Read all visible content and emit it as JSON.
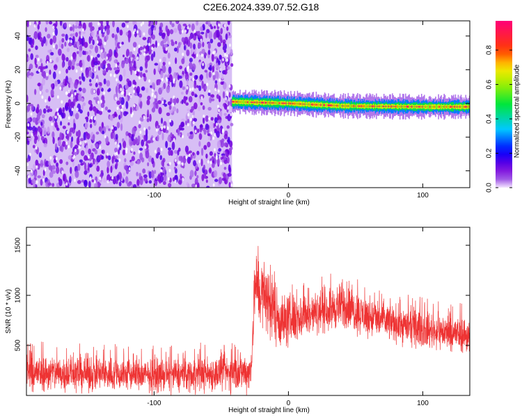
{
  "title": "C2E6.2024.339.07.52.G18",
  "chart_data": [
    {
      "type": "heatmap",
      "xlabel": "Height of straight line (km)",
      "ylabel": "Frequency (Hz)",
      "xlim": [
        -195,
        135
      ],
      "ylim": [
        -50,
        49
      ],
      "xticks": [
        -100,
        0,
        100
      ],
      "yticks": [
        -40,
        -20,
        0,
        20,
        40
      ],
      "colorbar": {
        "label": "Normalized spectral amplitude",
        "range": [
          0,
          0.97
        ],
        "ticks": [
          0,
          0.2,
          0.4,
          0.6,
          0.8
        ]
      },
      "noise_region_x": [
        -195,
        -42
      ],
      "signal_track": [
        {
          "x": -42,
          "f": 1.0
        },
        {
          "x": 0,
          "f": 0.0
        },
        {
          "x": 40,
          "f": -1.5
        },
        {
          "x": 100,
          "f": -2.0
        },
        {
          "x": 135,
          "f": -2.0
        }
      ]
    },
    {
      "type": "line",
      "xlabel": "Height of straight line (km)",
      "ylabel": "SNR (10 * v/v)",
      "xlim": [
        -195,
        135
      ],
      "ylim": [
        0,
        1680
      ],
      "xticks": [
        -100,
        0,
        100
      ],
      "yticks": [
        500,
        1000,
        1500
      ],
      "color": "#ee3333",
      "envelope": [
        {
          "x": -195,
          "min": 20,
          "max": 430
        },
        {
          "x": -150,
          "min": 20,
          "max": 420
        },
        {
          "x": -100,
          "min": 20,
          "max": 380
        },
        {
          "x": -50,
          "min": 20,
          "max": 420
        },
        {
          "x": -28,
          "min": 20,
          "max": 460
        },
        {
          "x": -25,
          "min": 700,
          "max": 1500
        },
        {
          "x": -15,
          "min": 550,
          "max": 1350
        },
        {
          "x": -5,
          "min": 420,
          "max": 1050
        },
        {
          "x": 20,
          "min": 600,
          "max": 1050
        },
        {
          "x": 40,
          "min": 640,
          "max": 1150
        },
        {
          "x": 60,
          "min": 560,
          "max": 1000
        },
        {
          "x": 100,
          "min": 460,
          "max": 860
        },
        {
          "x": 135,
          "min": 400,
          "max": 800
        }
      ]
    }
  ]
}
